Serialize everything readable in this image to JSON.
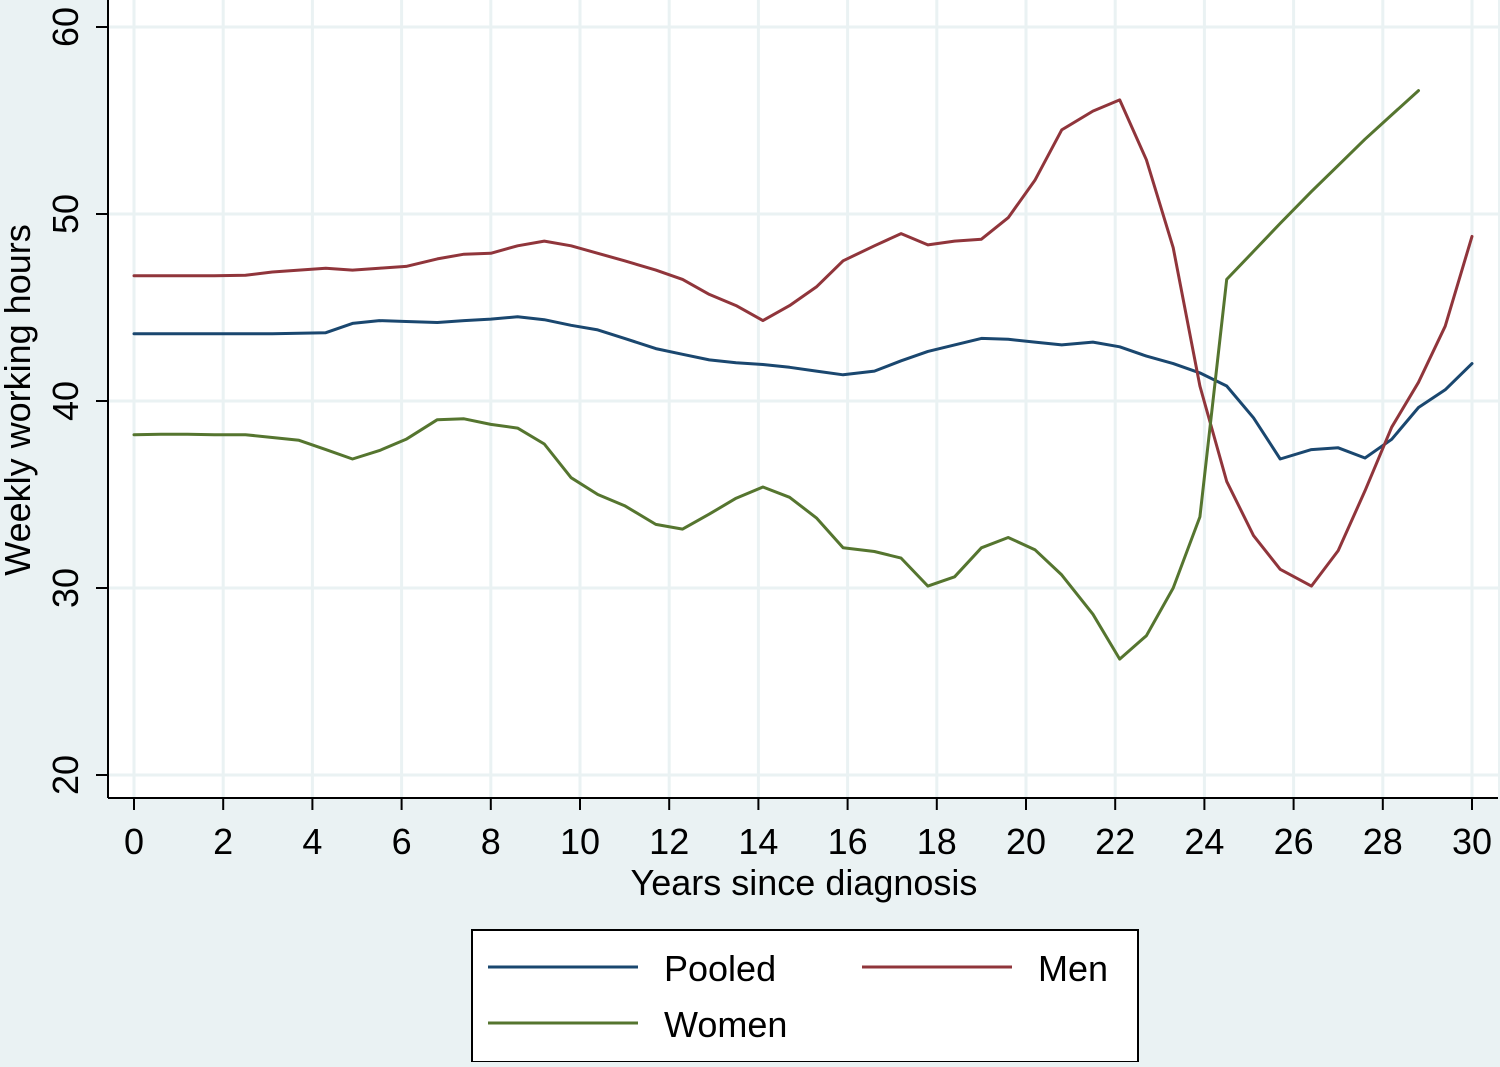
{
  "chart_data": {
    "type": "line",
    "title": "",
    "xlabel": "Years since diagnosis",
    "ylabel": "Weekly working hours",
    "xlim": [
      0,
      30
    ],
    "ylim": [
      20,
      60
    ],
    "x_ticks": [
      0,
      2,
      4,
      6,
      8,
      10,
      12,
      14,
      16,
      18,
      20,
      22,
      24,
      26,
      28,
      30
    ],
    "y_ticks": [
      20,
      30,
      40,
      50,
      60
    ],
    "grid": true,
    "legend_position": "bottom",
    "series": [
      {
        "name": "Pooled",
        "color": "#1a476f",
        "points": [
          [
            0,
            43.6
          ],
          [
            0.6,
            43.6
          ],
          [
            1.2,
            43.6
          ],
          [
            1.8,
            43.6
          ],
          [
            2.5,
            43.6
          ],
          [
            3.1,
            43.6
          ],
          [
            3.7,
            43.62
          ],
          [
            4.3,
            43.65
          ],
          [
            4.9,
            44.15
          ],
          [
            5.5,
            44.3
          ],
          [
            6.1,
            44.25
          ],
          [
            6.8,
            44.2
          ],
          [
            7.4,
            44.3
          ],
          [
            8.0,
            44.38
          ],
          [
            8.6,
            44.5
          ],
          [
            9.2,
            44.35
          ],
          [
            9.8,
            44.05
          ],
          [
            10.4,
            43.8
          ],
          [
            11.0,
            43.35
          ],
          [
            11.7,
            42.8
          ],
          [
            12.3,
            42.5
          ],
          [
            12.9,
            42.2
          ],
          [
            13.5,
            42.05
          ],
          [
            14.1,
            41.95
          ],
          [
            14.7,
            41.8
          ],
          [
            15.3,
            41.6
          ],
          [
            15.9,
            41.4
          ],
          [
            16.6,
            41.6
          ],
          [
            17.2,
            42.15
          ],
          [
            17.8,
            42.65
          ],
          [
            18.4,
            43.0
          ],
          [
            19.0,
            43.35
          ],
          [
            19.6,
            43.3
          ],
          [
            20.2,
            43.15
          ],
          [
            20.8,
            43.0
          ],
          [
            21.5,
            43.15
          ],
          [
            22.1,
            42.9
          ],
          [
            22.7,
            42.4
          ],
          [
            23.3,
            42.0
          ],
          [
            23.9,
            41.5
          ],
          [
            24.5,
            40.8
          ],
          [
            25.1,
            39.1
          ],
          [
            25.7,
            36.9
          ],
          [
            26.4,
            37.4
          ],
          [
            27.0,
            37.5
          ],
          [
            27.6,
            36.95
          ],
          [
            28.2,
            37.95
          ],
          [
            28.8,
            39.65
          ],
          [
            29.4,
            40.6
          ],
          [
            30.0,
            42.0
          ]
        ]
      },
      {
        "name": "Men",
        "color": "#90353b",
        "points": [
          [
            0,
            46.7
          ],
          [
            0.6,
            46.7
          ],
          [
            1.2,
            46.7
          ],
          [
            1.8,
            46.7
          ],
          [
            2.5,
            46.72
          ],
          [
            3.1,
            46.9
          ],
          [
            3.7,
            47.0
          ],
          [
            4.3,
            47.1
          ],
          [
            4.9,
            47.0
          ],
          [
            5.5,
            47.1
          ],
          [
            6.1,
            47.2
          ],
          [
            6.8,
            47.6
          ],
          [
            7.4,
            47.85
          ],
          [
            8.0,
            47.9
          ],
          [
            8.6,
            48.3
          ],
          [
            9.2,
            48.55
          ],
          [
            9.8,
            48.3
          ],
          [
            10.4,
            47.9
          ],
          [
            11.0,
            47.5
          ],
          [
            11.7,
            47.0
          ],
          [
            12.3,
            46.5
          ],
          [
            12.9,
            45.7
          ],
          [
            13.5,
            45.1
          ],
          [
            14.1,
            44.3
          ],
          [
            14.7,
            45.1
          ],
          [
            15.3,
            46.1
          ],
          [
            15.9,
            47.5
          ],
          [
            16.6,
            48.3
          ],
          [
            17.2,
            48.95
          ],
          [
            17.8,
            48.35
          ],
          [
            18.4,
            48.55
          ],
          [
            19.0,
            48.65
          ],
          [
            19.6,
            49.8
          ],
          [
            20.2,
            51.8
          ],
          [
            20.8,
            54.5
          ],
          [
            21.5,
            55.5
          ],
          [
            22.1,
            56.1
          ],
          [
            22.7,
            52.9
          ],
          [
            23.3,
            48.2
          ],
          [
            23.9,
            40.8
          ],
          [
            24.5,
            35.7
          ],
          [
            25.1,
            32.8
          ],
          [
            25.7,
            31.0
          ],
          [
            26.4,
            30.1
          ],
          [
            27.0,
            32.0
          ],
          [
            27.6,
            35.2
          ],
          [
            28.2,
            38.6
          ],
          [
            28.8,
            41.0
          ],
          [
            29.4,
            44.0
          ],
          [
            30.0,
            48.8
          ]
        ]
      },
      {
        "name": "Women",
        "color": "#55752f",
        "points": [
          [
            0,
            38.2
          ],
          [
            0.6,
            38.22
          ],
          [
            1.2,
            38.22
          ],
          [
            1.8,
            38.2
          ],
          [
            2.5,
            38.2
          ],
          [
            3.1,
            38.05
          ],
          [
            3.7,
            37.9
          ],
          [
            4.3,
            37.4
          ],
          [
            4.9,
            36.9
          ],
          [
            5.5,
            37.35
          ],
          [
            6.1,
            37.95
          ],
          [
            6.8,
            39.0
          ],
          [
            7.4,
            39.05
          ],
          [
            8.0,
            38.75
          ],
          [
            8.6,
            38.55
          ],
          [
            9.2,
            37.7
          ],
          [
            9.8,
            35.9
          ],
          [
            10.4,
            35.0
          ],
          [
            11.0,
            34.4
          ],
          [
            11.7,
            33.4
          ],
          [
            12.3,
            33.15
          ],
          [
            12.9,
            33.95
          ],
          [
            13.5,
            34.8
          ],
          [
            14.1,
            35.4
          ],
          [
            14.7,
            34.85
          ],
          [
            15.3,
            33.75
          ],
          [
            15.9,
            32.15
          ],
          [
            16.6,
            31.95
          ],
          [
            17.2,
            31.6
          ],
          [
            17.8,
            30.1
          ],
          [
            18.4,
            30.6
          ],
          [
            19.0,
            32.15
          ],
          [
            19.6,
            32.7
          ],
          [
            20.2,
            32.05
          ],
          [
            20.8,
            30.7
          ],
          [
            21.5,
            28.6
          ],
          [
            22.1,
            26.2
          ],
          [
            22.7,
            27.45
          ],
          [
            23.3,
            30.0
          ],
          [
            23.9,
            33.8
          ],
          [
            24.5,
            46.5
          ],
          [
            25.1,
            48.0
          ],
          [
            25.7,
            49.5
          ],
          [
            26.4,
            51.2
          ],
          [
            27.0,
            52.6
          ],
          [
            27.6,
            54.0
          ],
          [
            28.2,
            55.3
          ],
          [
            28.8,
            56.6
          ]
        ]
      }
    ]
  }
}
